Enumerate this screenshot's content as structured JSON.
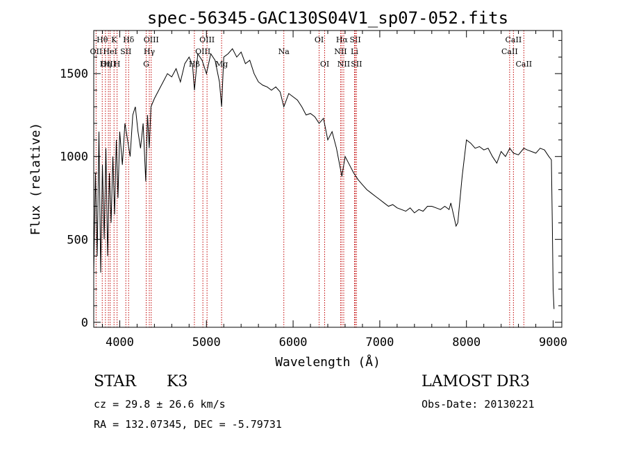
{
  "chart_data": {
    "type": "line",
    "title": "spec-56345-GAC130S04V1_sp07-052.fits",
    "xlabel": "Wavelength (Å)",
    "ylabel": "Flux (relative)",
    "xlim": [
      3700,
      9100
    ],
    "ylim": [
      -30,
      1760
    ],
    "x_ticks": [
      4000,
      5000,
      6000,
      7000,
      8000,
      9000
    ],
    "y_ticks": [
      0,
      500,
      1000,
      1500
    ],
    "series": [
      {
        "name": "flux",
        "color": "#000000",
        "x": [
          3700,
          3720,
          3740,
          3760,
          3780,
          3800,
          3820,
          3840,
          3860,
          3880,
          3900,
          3920,
          3940,
          3960,
          3980,
          4000,
          4030,
          4060,
          4090,
          4120,
          4150,
          4180,
          4210,
          4240,
          4270,
          4300,
          4320,
          4340,
          4360,
          4400,
          4450,
          4500,
          4550,
          4600,
          4650,
          4700,
          4750,
          4800,
          4840,
          4862,
          4900,
          4950,
          5000,
          5050,
          5100,
          5150,
          5175,
          5200,
          5250,
          5300,
          5350,
          5400,
          5450,
          5500,
          5550,
          5600,
          5650,
          5700,
          5750,
          5800,
          5850,
          5893,
          5950,
          6000,
          6050,
          6100,
          6150,
          6200,
          6250,
          6300,
          6350,
          6400,
          6450,
          6500,
          6563,
          6600,
          6650,
          6700,
          6750,
          6800,
          6850,
          6900,
          6950,
          7000,
          7050,
          7100,
          7150,
          7200,
          7250,
          7300,
          7350,
          7400,
          7450,
          7500,
          7550,
          7600,
          7650,
          7700,
          7750,
          7800,
          7820,
          7850,
          7880,
          7900,
          7950,
          8000,
          8050,
          8100,
          8150,
          8200,
          8250,
          8300,
          8350,
          8400,
          8450,
          8500,
          8542,
          8600,
          8662,
          8700,
          8750,
          8800,
          8850,
          8900,
          8950,
          8980,
          8990,
          9000,
          9010
        ],
        "y": [
          300,
          900,
          400,
          1150,
          300,
          950,
          500,
          1050,
          400,
          900,
          600,
          1000,
          650,
          1100,
          750,
          1150,
          950,
          1200,
          1100,
          1000,
          1250,
          1300,
          1150,
          1050,
          1200,
          850,
          1250,
          1050,
          1300,
          1350,
          1400,
          1450,
          1500,
          1480,
          1530,
          1450,
          1560,
          1600,
          1550,
          1400,
          1620,
          1580,
          1500,
          1620,
          1580,
          1450,
          1300,
          1600,
          1620,
          1650,
          1600,
          1630,
          1560,
          1580,
          1500,
          1450,
          1430,
          1420,
          1400,
          1420,
          1390,
          1300,
          1380,
          1360,
          1340,
          1300,
          1250,
          1260,
          1240,
          1200,
          1230,
          1100,
          1150,
          1050,
          880,
          1000,
          950,
          900,
          860,
          830,
          800,
          780,
          760,
          740,
          720,
          700,
          710,
          690,
          680,
          670,
          690,
          660,
          680,
          670,
          700,
          700,
          690,
          680,
          700,
          680,
          720,
          650,
          580,
          600,
          880,
          1100,
          1080,
          1050,
          1060,
          1040,
          1050,
          1000,
          960,
          1030,
          1000,
          1050,
          1020,
          1010,
          1050,
          1040,
          1030,
          1020,
          1050,
          1040,
          1000,
          980,
          600,
          200,
          80
        ]
      }
    ],
    "line_markers": [
      {
        "label": "Hθ",
        "x": 3798,
        "row": 1
      },
      {
        "label": "OII",
        "x": 3727,
        "row": 2
      },
      {
        "label": "OIII",
        "x": 3869,
        "row": 3
      },
      {
        "label": "K",
        "x": 3934,
        "row": 1
      },
      {
        "label": "HeI",
        "x": 3889,
        "row": 2
      },
      {
        "label": "Hη",
        "x": 3835,
        "row": 3
      },
      {
        "label": "Hδ",
        "x": 4102,
        "row": 1
      },
      {
        "label": "SII",
        "x": 4070,
        "row": 2
      },
      {
        "label": "H",
        "x": 3969,
        "row": 3
      },
      {
        "label": "OIII",
        "x": 4363,
        "row": 1
      },
      {
        "label": "Hγ",
        "x": 4341,
        "row": 2
      },
      {
        "label": "G",
        "x": 4305,
        "row": 3
      },
      {
        "label": "OIII",
        "x": 5007,
        "row": 1
      },
      {
        "label": "OIII",
        "x": 4959,
        "row": 2
      },
      {
        "label": "Hβ",
        "x": 4861,
        "row": 3
      },
      {
        "label": "Mg",
        "x": 5175,
        "row": 3
      },
      {
        "label": "Na",
        "x": 5893,
        "row": 2
      },
      {
        "label": "OI",
        "x": 6300,
        "row": 1
      },
      {
        "label": "OI",
        "x": 6364,
        "row": 3
      },
      {
        "label": "Hα",
        "x": 6563,
        "row": 1
      },
      {
        "label": "SII",
        "x": 6717,
        "row": 1
      },
      {
        "label": "NII",
        "x": 6548,
        "row": 2
      },
      {
        "label": "Li",
        "x": 6708,
        "row": 2
      },
      {
        "label": "NII",
        "x": 6584,
        "row": 3
      },
      {
        "label": "SII",
        "x": 6731,
        "row": 3
      },
      {
        "label": "CaII",
        "x": 8542,
        "row": 1
      },
      {
        "label": "CaII",
        "x": 8498,
        "row": 2
      },
      {
        "label": "CaII",
        "x": 8662,
        "row": 3
      }
    ]
  },
  "info": {
    "class_label": "STAR",
    "subclass": "K3",
    "survey": "LAMOST DR3",
    "cz": "cz = 29.8 ± 26.6 km/s",
    "obs_date": "Obs-Date: 20130221",
    "coords": "RA = 132.07345, DEC =  -5.79731"
  }
}
